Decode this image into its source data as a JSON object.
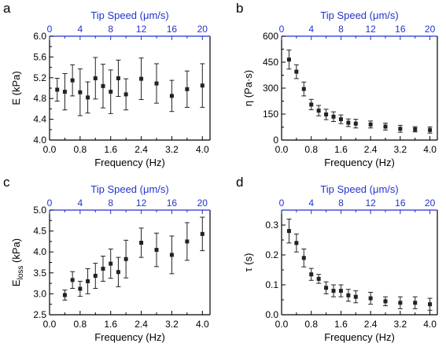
{
  "chart_data": [
    {
      "panel": "a",
      "type": "scatter",
      "xlabel": "Frequency (Hz)",
      "ylabel": "E (kPa)",
      "top_xlabel": "Tip Speed (μm/s)",
      "xlim": [
        0.0,
        4.2
      ],
      "ylim": [
        4.0,
        6.0
      ],
      "top_lim": [
        0,
        21
      ],
      "xticks": [
        "0.0",
        "0.4",
        "0.8",
        "1.2",
        "1.6",
        "2.0",
        "2.4",
        "2.8",
        "3.2",
        "3.6",
        "4.0"
      ],
      "xtick_values": [
        0.0,
        0.4,
        0.8,
        1.2,
        1.6,
        2.0,
        2.4,
        2.8,
        3.2,
        3.6,
        4.0
      ],
      "xtick_label_every": 2,
      "yticks": [
        "4.0",
        "4.4",
        "4.8",
        "5.2",
        "5.6",
        "6.0"
      ],
      "ytick_values": [
        4.0,
        4.4,
        4.8,
        5.2,
        5.6,
        6.0
      ],
      "top_ticks": [
        "0",
        "4",
        "8",
        "12",
        "16",
        "20"
      ],
      "top_tick_values": [
        0,
        4,
        8,
        12,
        16,
        20
      ],
      "top_minor_values": [
        2,
        6,
        10,
        14,
        18
      ],
      "y_minor_values": [
        4.2,
        4.6,
        5.0,
        5.4,
        5.8
      ],
      "x": [
        0.2,
        0.4,
        0.6,
        0.8,
        1.0,
        1.2,
        1.4,
        1.6,
        1.8,
        2.0,
        2.4,
        2.8,
        3.2,
        3.6,
        4.0
      ],
      "y": [
        4.97,
        4.93,
        5.15,
        4.92,
        4.82,
        5.19,
        5.04,
        4.93,
        5.19,
        4.88,
        5.18,
        5.09,
        4.85,
        4.98,
        5.05
      ],
      "err": [
        0.22,
        0.35,
        0.3,
        0.45,
        0.3,
        0.4,
        0.42,
        0.42,
        0.35,
        0.3,
        0.4,
        0.38,
        0.3,
        0.35,
        0.42
      ]
    },
    {
      "panel": "b",
      "type": "scatter",
      "xlabel": "Frequency (Hz)",
      "ylabel": "η (Pa·s)",
      "top_xlabel": "Tip Speed (μm/s)",
      "xlim": [
        0.0,
        4.2
      ],
      "ylim": [
        0,
        600
      ],
      "top_lim": [
        0,
        21
      ],
      "xticks": [
        "0.0",
        "0.4",
        "0.8",
        "1.2",
        "1.6",
        "2.0",
        "2.4",
        "2.8",
        "3.2",
        "3.6",
        "4.0"
      ],
      "xtick_values": [
        0.0,
        0.4,
        0.8,
        1.2,
        1.6,
        2.0,
        2.4,
        2.8,
        3.2,
        3.6,
        4.0
      ],
      "xtick_label_every": 2,
      "yticks": [
        "0",
        "150",
        "300",
        "450",
        "600"
      ],
      "ytick_values": [
        0,
        150,
        300,
        450,
        600
      ],
      "top_ticks": [
        "0",
        "4",
        "8",
        "12",
        "16",
        "20"
      ],
      "top_tick_values": [
        0,
        4,
        8,
        12,
        16,
        20
      ],
      "top_minor_values": [
        2,
        6,
        10,
        14,
        18
      ],
      "y_minor_values": [
        75,
        225,
        375,
        525
      ],
      "x": [
        0.2,
        0.4,
        0.6,
        0.8,
        1.0,
        1.2,
        1.4,
        1.6,
        1.8,
        2.0,
        2.4,
        2.8,
        3.2,
        3.6,
        4.0
      ],
      "y": [
        465,
        395,
        295,
        205,
        170,
        148,
        135,
        120,
        100,
        95,
        90,
        78,
        65,
        62,
        58
      ],
      "err": [
        55,
        40,
        40,
        30,
        30,
        30,
        28,
        25,
        22,
        25,
        20,
        20,
        20,
        15,
        18
      ]
    },
    {
      "panel": "c",
      "type": "scatter",
      "xlabel": "Frequency (Hz)",
      "ylabel": "E_loss (kPa)",
      "ylabel_main": "E",
      "ylabel_sub": "loss",
      "ylabel_unit": " (kPa)",
      "top_xlabel": "Tip Speed (μm/s)",
      "xlim": [
        0.0,
        4.2
      ],
      "ylim": [
        2.5,
        5.0
      ],
      "top_lim": [
        0,
        21
      ],
      "xticks": [
        "0.0",
        "0.4",
        "0.8",
        "1.2",
        "1.6",
        "2.0",
        "2.4",
        "2.8",
        "3.2",
        "3.6",
        "4.0"
      ],
      "xtick_values": [
        0.0,
        0.4,
        0.8,
        1.2,
        1.6,
        2.0,
        2.4,
        2.8,
        3.2,
        3.6,
        4.0
      ],
      "xtick_label_every": 2,
      "yticks": [
        "2.5",
        "3.0",
        "3.5",
        "4.0",
        "4.5",
        "5.0"
      ],
      "ytick_values": [
        2.5,
        3.0,
        3.5,
        4.0,
        4.5,
        5.0
      ],
      "top_ticks": [
        "0",
        "4",
        "8",
        "12",
        "16",
        "20"
      ],
      "top_tick_values": [
        0,
        4,
        8,
        12,
        16,
        20
      ],
      "top_minor_values": [
        2,
        6,
        10,
        14,
        18
      ],
      "y_minor_values": [
        2.75,
        3.25,
        3.75,
        4.25,
        4.75
      ],
      "x": [
        0.4,
        0.6,
        0.8,
        1.0,
        1.2,
        1.4,
        1.6,
        1.8,
        2.0,
        2.4,
        2.8,
        3.2,
        3.6,
        4.0
      ],
      "y": [
        2.97,
        3.33,
        3.12,
        3.3,
        3.43,
        3.6,
        3.72,
        3.52,
        3.83,
        4.22,
        4.05,
        3.93,
        4.25,
        4.43
      ],
      "err": [
        0.12,
        0.2,
        0.18,
        0.3,
        0.3,
        0.3,
        0.35,
        0.35,
        0.45,
        0.35,
        0.4,
        0.45,
        0.45,
        0.4
      ]
    },
    {
      "panel": "d",
      "type": "scatter",
      "xlabel": "Frequency (Hz)",
      "ylabel": "τ (s)",
      "top_xlabel": "Tip Speed (μm/s)",
      "xlim": [
        0.0,
        4.2
      ],
      "ylim": [
        0.0,
        0.35
      ],
      "top_lim": [
        0,
        21
      ],
      "xticks": [
        "0.0",
        "0.4",
        "0.8",
        "1.2",
        "1.6",
        "2.0",
        "2.4",
        "2.8",
        "3.2",
        "3.6",
        "4.0"
      ],
      "xtick_values": [
        0.0,
        0.4,
        0.8,
        1.2,
        1.6,
        2.0,
        2.4,
        2.8,
        3.2,
        3.6,
        4.0
      ],
      "xtick_label_every": 2,
      "yticks": [
        "0.0",
        "0.1",
        "0.2",
        "0.3"
      ],
      "ytick_values": [
        0.0,
        0.1,
        0.2,
        0.3
      ],
      "top_ticks": [
        "0",
        "4",
        "8",
        "12",
        "16",
        "20"
      ],
      "top_tick_values": [
        0,
        4,
        8,
        12,
        16,
        20
      ],
      "top_minor_values": [
        2,
        6,
        10,
        14,
        18
      ],
      "y_minor_values": [
        0.05,
        0.15,
        0.25
      ],
      "x": [
        0.2,
        0.4,
        0.6,
        0.8,
        1.0,
        1.2,
        1.4,
        1.6,
        1.8,
        2.0,
        2.4,
        2.8,
        3.2,
        3.6,
        4.0
      ],
      "y": [
        0.28,
        0.24,
        0.19,
        0.135,
        0.12,
        0.09,
        0.08,
        0.08,
        0.065,
        0.06,
        0.055,
        0.045,
        0.04,
        0.04,
        0.035
      ],
      "err": [
        0.04,
        0.03,
        0.03,
        0.02,
        0.015,
        0.02,
        0.02,
        0.02,
        0.02,
        0.02,
        0.02,
        0.015,
        0.02,
        0.02,
        0.02
      ]
    }
  ],
  "colors": {
    "axis": "#000000",
    "top_axis": "#2233cc",
    "marker": "#222222"
  }
}
